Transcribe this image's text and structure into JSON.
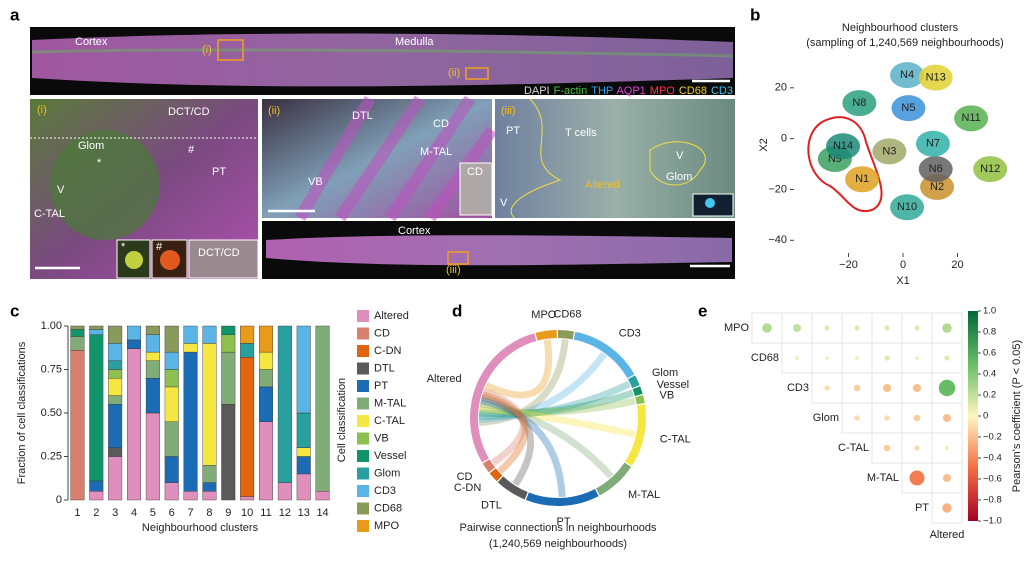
{
  "panel_a": {
    "label": "a",
    "overview": {
      "cortex": "Cortex",
      "medulla": "Medulla",
      "roi_i": "(i)",
      "roi_ii": "(ii)"
    },
    "channels": [
      {
        "name": "DAPI",
        "color": "#d8d8d8"
      },
      {
        "name": "F-actin",
        "color": "#49c23a"
      },
      {
        "name": "THP",
        "color": "#3a9ae8"
      },
      {
        "name": "AQP1",
        "color": "#e040d8"
      },
      {
        "name": "MPO",
        "color": "#ff3050"
      },
      {
        "name": "CD68",
        "color": "#f0d020"
      },
      {
        "name": "CD3",
        "color": "#40c8f0"
      }
    ],
    "inset_i": {
      "tag": "(i)",
      "dct": "DCT/CD",
      "glom": "Glom",
      "star": "*",
      "hash": "#",
      "pt": "PT",
      "v": "V",
      "ctal": "C-TAL",
      "sub_star": "*",
      "sub_hash": "#",
      "sub_dct": "DCT/CD"
    },
    "inset_ii": {
      "tag": "(ii)",
      "dtl": "DTL",
      "cd": "CD",
      "mtal": "M-TAL",
      "vb": "VB",
      "sub_cd": "CD"
    },
    "inset_iii": {
      "tag": "(iii)",
      "pt": "PT",
      "tcells": "T cells",
      "v1": "V",
      "altered": "Altered",
      "glom": "Glom",
      "v2": "V"
    },
    "cortex_strip": {
      "cortex": "Cortex",
      "roi_iii": "(iii)"
    }
  },
  "chart_data": [
    {
      "type": "scatter",
      "panel_label": "b",
      "title": "Neighbourhood clusters",
      "subtitle": "(sampling of 1,240,569 neighbourhoods)",
      "x_label": "X1",
      "y_label": "X2",
      "xlim": [
        -40,
        40
      ],
      "ylim": [
        -45,
        40
      ],
      "xticks": [
        {
          "value": -20,
          "label": "−20"
        },
        0,
        20
      ],
      "yticks": [
        20,
        0,
        {
          "value": -20,
          "label": "−20"
        },
        {
          "value": -40,
          "label": "−40"
        }
      ],
      "clusters": [
        {
          "name": "N1",
          "x": -15,
          "y": -16,
          "color": "#e0a020"
        },
        {
          "name": "N2",
          "x": 12.5,
          "y": -19,
          "color": "#c8902a"
        },
        {
          "name": "N3",
          "x": -5,
          "y": -5,
          "color": "#a0a868"
        },
        {
          "name": "N4",
          "x": 1.5,
          "y": 25,
          "color": "#5ab0c8"
        },
        {
          "name": "N5",
          "x": 2,
          "y": 12,
          "color": "#3a90d8"
        },
        {
          "name": "N6",
          "x": 12,
          "y": -12,
          "color": "#606060"
        },
        {
          "name": "N7",
          "x": 11,
          "y": -2,
          "color": "#30b0a8"
        },
        {
          "name": "N8",
          "x": -16,
          "y": 14,
          "color": "#2aa080"
        },
        {
          "name": "N9",
          "x": -25,
          "y": -8,
          "color": "#3aa060"
        },
        {
          "name": "N10",
          "x": 1.5,
          "y": -27,
          "color": "#30a898"
        },
        {
          "name": "N11",
          "x": 25,
          "y": 8,
          "color": "#58b050"
        },
        {
          "name": "N12",
          "x": 32,
          "y": -12,
          "color": "#90c040"
        },
        {
          "name": "N13",
          "x": 12,
          "y": 24,
          "color": "#e0d030"
        },
        {
          "name": "N14",
          "x": -22,
          "y": -3,
          "color": "#1a8a78"
        }
      ]
    },
    {
      "type": "stacked_bar",
      "panel_label": "c",
      "y_label": "Fraction of cell classifications",
      "x_label": "Neighbourhood clusters",
      "legend_title": "Cell classification",
      "categories": [
        "1",
        "2",
        "3",
        "4",
        "5",
        "6",
        "7",
        "8",
        "9",
        "10",
        "11",
        "12",
        "13",
        "14"
      ],
      "category_colors": [
        "#e0a020",
        "#c8a030",
        "#a0a868",
        "#5ab0c8",
        "#3a90d8",
        "#3a90d8",
        "#30b0a8",
        "#2aa080",
        "#3aa060",
        "#808080",
        "#d0a830",
        "#90c040",
        "#d8c830",
        "#1a8a78"
      ],
      "ylim": [
        0,
        1
      ],
      "yticks": [
        0,
        0.25,
        {
          "value": 0.5,
          "label": "0.50"
        },
        0.75,
        {
          "value": 1,
          "label": "1.00"
        }
      ],
      "series": [
        {
          "name": "Altered",
          "color": "#e08fbc",
          "values": [
            0,
            0.05,
            0.25,
            0.87,
            0.5,
            0.1,
            0.05,
            0.05,
            0,
            0.02,
            0.45,
            0.1,
            0.15,
            0.05
          ]
        },
        {
          "name": "CD",
          "color": "#d8806c",
          "values": [
            0.86,
            0,
            0,
            0,
            0,
            0,
            0,
            0,
            0,
            0,
            0,
            0,
            0,
            0
          ]
        },
        {
          "name": "C-DN",
          "color": "#e0650f",
          "values": [
            0,
            0,
            0,
            0,
            0,
            0,
            0,
            0,
            0,
            0.8,
            0,
            0,
            0,
            0
          ]
        },
        {
          "name": "DTL",
          "color": "#5a5a5a",
          "values": [
            0,
            0,
            0.05,
            0,
            0,
            0,
            0,
            0,
            0.55,
            0,
            0,
            0,
            0,
            0
          ]
        },
        {
          "name": "PT",
          "color": "#1b6cb5",
          "values": [
            0,
            0.06,
            0.25,
            0.05,
            0.2,
            0.15,
            0.8,
            0.05,
            0,
            0,
            0.2,
            0,
            0.1,
            0
          ]
        },
        {
          "name": "M-TAL",
          "color": "#80ac78",
          "values": [
            0.08,
            0,
            0.05,
            0,
            0.1,
            0.2,
            0,
            0.1,
            0.3,
            0,
            0.1,
            0,
            0,
            0.95
          ]
        },
        {
          "name": "C-TAL",
          "color": "#f5e642",
          "values": [
            0,
            0,
            0.1,
            0,
            0.05,
            0.2,
            0.05,
            0.7,
            0,
            0,
            0.1,
            0,
            0.05,
            0
          ]
        },
        {
          "name": "VB",
          "color": "#8cc152",
          "values": [
            0,
            0,
            0.05,
            0,
            0,
            0.1,
            0,
            0,
            0.1,
            0,
            0,
            0,
            0,
            0
          ]
        },
        {
          "name": "Vessel",
          "color": "#12946a",
          "values": [
            0.04,
            0.84,
            0,
            0,
            0,
            0,
            0,
            0,
            0.05,
            0,
            0,
            0,
            0,
            0
          ]
        },
        {
          "name": "Glom",
          "color": "#28a0a0",
          "values": [
            0,
            0,
            0.05,
            0,
            0,
            0,
            0,
            0,
            0,
            0.08,
            0,
            0.9,
            0.2,
            0
          ]
        },
        {
          "name": "CD3",
          "color": "#5ab4e5",
          "values": [
            0,
            0.03,
            0.1,
            0.08,
            0.1,
            0.1,
            0.1,
            0.1,
            0,
            0,
            0,
            0,
            0.5,
            0
          ]
        },
        {
          "name": "CD68",
          "color": "#8a9a5b",
          "values": [
            0.02,
            0.02,
            0.1,
            0,
            0.05,
            0.15,
            0,
            0,
            0,
            0,
            0,
            0,
            0,
            0
          ]
        },
        {
          "name": "MPO",
          "color": "#e89a1a",
          "values": [
            0,
            0,
            0,
            0,
            0,
            0,
            0,
            0,
            0,
            0.1,
            0.15,
            0,
            0,
            0
          ]
        }
      ]
    },
    {
      "type": "chord",
      "panel_label": "d",
      "caption": "Pairwise connections in neighbourhoods",
      "subcaption": "(1,240,569 neighbourhoods)",
      "categories": [
        "CD68",
        "CD3",
        "Glom",
        "Vessel",
        "VB",
        "C-TAL",
        "M-TAL",
        "PT",
        "DTL",
        "C-DN",
        "CD",
        "Altered",
        "MPO"
      ],
      "values": [
        3,
        14,
        2,
        1.5,
        1.5,
        12,
        8,
        14,
        6,
        2,
        2,
        30,
        4
      ],
      "colors": [
        "#8a9a5b",
        "#5ab4e5",
        "#28a0a0",
        "#12946a",
        "#8cc152",
        "#f5e642",
        "#80ac78",
        "#1b6cb5",
        "#5a5a5a",
        "#e0650f",
        "#d8806c",
        "#e08fbc",
        "#e89a1a"
      ]
    },
    {
      "type": "correlation_matrix",
      "panel_label": "e",
      "variables": [
        "MPO",
        "CD68",
        "CD3",
        "Glom",
        "C-TAL",
        "M-TAL",
        "PT",
        "Altered"
      ],
      "values": [
        [
          0.25,
          0.2,
          0.1,
          0.1,
          0.1,
          0.1,
          0.25
        ],
        [
          0.05,
          0.05,
          0.05,
          0.1,
          0.05,
          0.1
        ],
        [
          -0.1,
          -0.15,
          -0.2,
          -0.2,
          0.5
        ],
        [
          -0.1,
          -0.1,
          -0.15,
          -0.2
        ],
        [
          -0.15,
          -0.1,
          -0.05
        ],
        [
          -0.45,
          -0.2
        ],
        [
          -0.25
        ]
      ],
      "colorbar_label": "Pearson's coefficient (P < 0.05)",
      "clim": [
        -1,
        1
      ],
      "cticks": [
        {
          "value": 1,
          "label": "1.0"
        },
        0.8,
        0.6,
        0.4,
        0.2,
        0,
        {
          "value": -0.2,
          "label": "−0.2"
        },
        {
          "value": -0.4,
          "label": "−0.4"
        },
        {
          "value": -0.6,
          "label": "−0.6"
        },
        {
          "value": -0.8,
          "label": "−0.8"
        },
        {
          "value": -1,
          "label": "−1.0"
        }
      ],
      "colorscale": [
        [
          -1,
          "#a50026"
        ],
        [
          -0.5,
          "#f46d43"
        ],
        [
          0,
          "#fff5c0"
        ],
        [
          0.5,
          "#66bd63"
        ],
        [
          1,
          "#006837"
        ]
      ]
    }
  ]
}
